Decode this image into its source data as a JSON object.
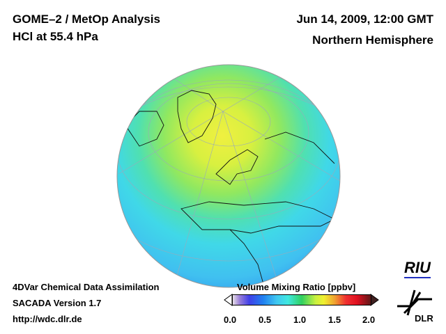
{
  "header": {
    "title_line1": "GOME–2 / MetOp Analysis",
    "title_line2": "HCl at 55.4 hPa",
    "date": "Jun 14, 2009, 12:00 GMT",
    "region": "Northern Hemisphere"
  },
  "footer": {
    "line1": "4DVar Chemical Data Assimilation",
    "line2": "SACADA Version 1.7",
    "line3": "http://wdc.dlr.de"
  },
  "colorbar": {
    "label": "Volume Mixing Ratio [ppbv]",
    "ticks": [
      "0.0",
      "0.5",
      "1.0",
      "1.5",
      "2.0"
    ],
    "min": 0.0,
    "max": 2.0
  },
  "logos": {
    "riu": "RIU",
    "dlr": "DLR"
  }
}
